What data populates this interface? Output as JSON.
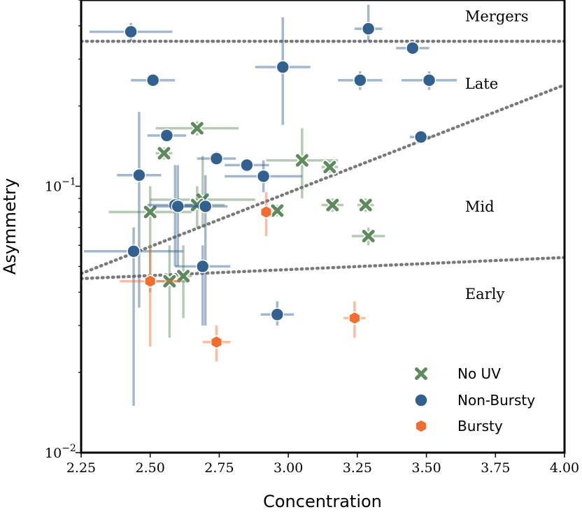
{
  "chart_data": {
    "type": "scatter",
    "xlabel": "Concentration",
    "ylabel": "Asymmetry",
    "xlim": [
      2.25,
      4.0
    ],
    "ylim": [
      0.01,
      0.5
    ],
    "yscale": "log",
    "x_ticks": [
      "2.25",
      "2.50",
      "2.75",
      "3.00",
      "3.25",
      "3.50",
      "3.75",
      "4.00"
    ],
    "x_tick_values": [
      2.25,
      2.5,
      2.75,
      3.0,
      3.25,
      3.5,
      3.75,
      4.0
    ],
    "y_tick_labels": [
      {
        "base": "10",
        "exp": "−1",
        "value": 0.1
      },
      {
        "base": "10",
        "exp": "−2",
        "value": 0.01
      }
    ],
    "legend_position": "lower-right",
    "region_labels": [
      {
        "text": "Mergers",
        "x": 3.64,
        "y": 0.43
      },
      {
        "text": "Late",
        "x": 3.64,
        "y": 0.24
      },
      {
        "text": "Mid",
        "x": 3.64,
        "y": 0.083
      },
      {
        "text": "Early",
        "x": 3.64,
        "y": 0.039
      }
    ],
    "boundary_lines": [
      {
        "name": "mergers-boundary",
        "x": [
          2.25,
          4.0
        ],
        "y": [
          0.35,
          0.35
        ]
      },
      {
        "name": "late-mid-boundary",
        "x": [
          2.25,
          4.0
        ],
        "y": [
          0.047,
          0.24
        ]
      },
      {
        "name": "mid-early-boundary",
        "x": [
          2.25,
          4.0
        ],
        "y": [
          0.045,
          0.054
        ]
      }
    ],
    "series": [
      {
        "name": "No UV",
        "marker": "x",
        "color": "#5e8a5e",
        "points": [
          {
            "x": 2.67,
            "y": 0.165,
            "xerr": 0.15,
            "ylo": 0.155,
            "yhi": 0.175
          },
          {
            "x": 2.55,
            "y": 0.133,
            "xerr": 0.03,
            "ylo": 0.126,
            "yhi": 0.14
          },
          {
            "x": 3.05,
            "y": 0.125,
            "xerr": 0.13,
            "ylo": 0.09,
            "yhi": 0.165
          },
          {
            "x": 3.15,
            "y": 0.118,
            "xerr": 0.03,
            "ylo": 0.112,
            "yhi": 0.124
          },
          {
            "x": 2.69,
            "y": 0.089,
            "xerr": 0.19,
            "ylo": 0.07,
            "yhi": 0.13
          },
          {
            "x": 2.67,
            "y": 0.085,
            "xerr": 0.1,
            "ylo": 0.07,
            "yhi": 0.1
          },
          {
            "x": 2.5,
            "y": 0.08,
            "xerr": 0.15,
            "ylo": 0.04,
            "yhi": 0.1
          },
          {
            "x": 2.96,
            "y": 0.081,
            "xerr": 0.02,
            "ylo": 0.077,
            "yhi": 0.085
          },
          {
            "x": 3.16,
            "y": 0.085,
            "xerr": 0.04,
            "ylo": 0.08,
            "yhi": 0.09
          },
          {
            "x": 3.28,
            "y": 0.085,
            "xerr": 0.03,
            "ylo": 0.08,
            "yhi": 0.09
          },
          {
            "x": 3.29,
            "y": 0.065,
            "xerr": 0.06,
            "ylo": 0.06,
            "yhi": 0.07
          },
          {
            "x": 2.62,
            "y": 0.046,
            "xerr": 0.03,
            "ylo": 0.032,
            "yhi": 0.06
          },
          {
            "x": 2.57,
            "y": 0.044,
            "xerr": 0.07,
            "ylo": 0.027,
            "yhi": 0.06
          }
        ]
      },
      {
        "name": "Non-Bursty",
        "marker": "o",
        "color": "#33618f",
        "points": [
          {
            "x": 2.43,
            "y": 0.38,
            "xerr": 0.15,
            "ylo": 0.35,
            "yhi": 0.41
          },
          {
            "x": 3.29,
            "y": 0.39,
            "xerr": 0.05,
            "ylo": 0.35,
            "yhi": 0.48
          },
          {
            "x": 3.45,
            "y": 0.33,
            "xerr": 0.06,
            "ylo": 0.32,
            "yhi": 0.34
          },
          {
            "x": 2.98,
            "y": 0.28,
            "xerr": 0.1,
            "ylo": 0.17,
            "yhi": 0.43
          },
          {
            "x": 2.51,
            "y": 0.25,
            "xerr": 0.08,
            "ylo": 0.24,
            "yhi": 0.26
          },
          {
            "x": 3.26,
            "y": 0.25,
            "xerr": 0.08,
            "ylo": 0.23,
            "yhi": 0.27
          },
          {
            "x": 3.51,
            "y": 0.25,
            "xerr": 0.1,
            "ylo": 0.23,
            "yhi": 0.27
          },
          {
            "x": 2.56,
            "y": 0.155,
            "xerr": 0.07,
            "ylo": 0.147,
            "yhi": 0.163
          },
          {
            "x": 3.48,
            "y": 0.153,
            "xerr": 0.04,
            "ylo": 0.145,
            "yhi": 0.16
          },
          {
            "x": 2.74,
            "y": 0.127,
            "xerr": 0.07,
            "ylo": 0.12,
            "yhi": 0.135
          },
          {
            "x": 2.85,
            "y": 0.12,
            "xerr": 0.08,
            "ylo": 0.114,
            "yhi": 0.126
          },
          {
            "x": 2.46,
            "y": 0.11,
            "xerr": 0.08,
            "ylo": 0.035,
            "yhi": 0.19
          },
          {
            "x": 2.91,
            "y": 0.109,
            "xerr": 0.14,
            "ylo": 0.095,
            "yhi": 0.125
          },
          {
            "x": 2.59,
            "y": 0.085,
            "xerr": 0.1,
            "ylo": 0.05,
            "yhi": 0.12
          },
          {
            "x": 2.6,
            "y": 0.084,
            "xerr": 0.09,
            "ylo": 0.05,
            "yhi": 0.12
          },
          {
            "x": 2.7,
            "y": 0.084,
            "xerr": 0.08,
            "ylo": 0.03,
            "yhi": 0.11
          },
          {
            "x": 2.44,
            "y": 0.057,
            "xerr": 0.18,
            "ylo": 0.015,
            "yhi": 0.07
          },
          {
            "x": 2.69,
            "y": 0.05,
            "xerr": 0.1,
            "ylo": 0.03,
            "yhi": 0.06
          },
          {
            "x": 2.96,
            "y": 0.033,
            "xerr": 0.06,
            "ylo": 0.03,
            "yhi": 0.037
          }
        ]
      },
      {
        "name": "Bursty",
        "marker": "h",
        "color": "#f46d2e",
        "points": [
          {
            "x": 2.92,
            "y": 0.08,
            "xerr": 0.02,
            "ylo": 0.065,
            "yhi": 0.095
          },
          {
            "x": 2.5,
            "y": 0.044,
            "xerr": 0.11,
            "ylo": 0.025,
            "yhi": 0.06
          },
          {
            "x": 3.24,
            "y": 0.032,
            "xerr": 0.04,
            "ylo": 0.027,
            "yhi": 0.037
          },
          {
            "x": 2.74,
            "y": 0.026,
            "xerr": 0.05,
            "ylo": 0.022,
            "yhi": 0.03
          }
        ]
      }
    ]
  }
}
